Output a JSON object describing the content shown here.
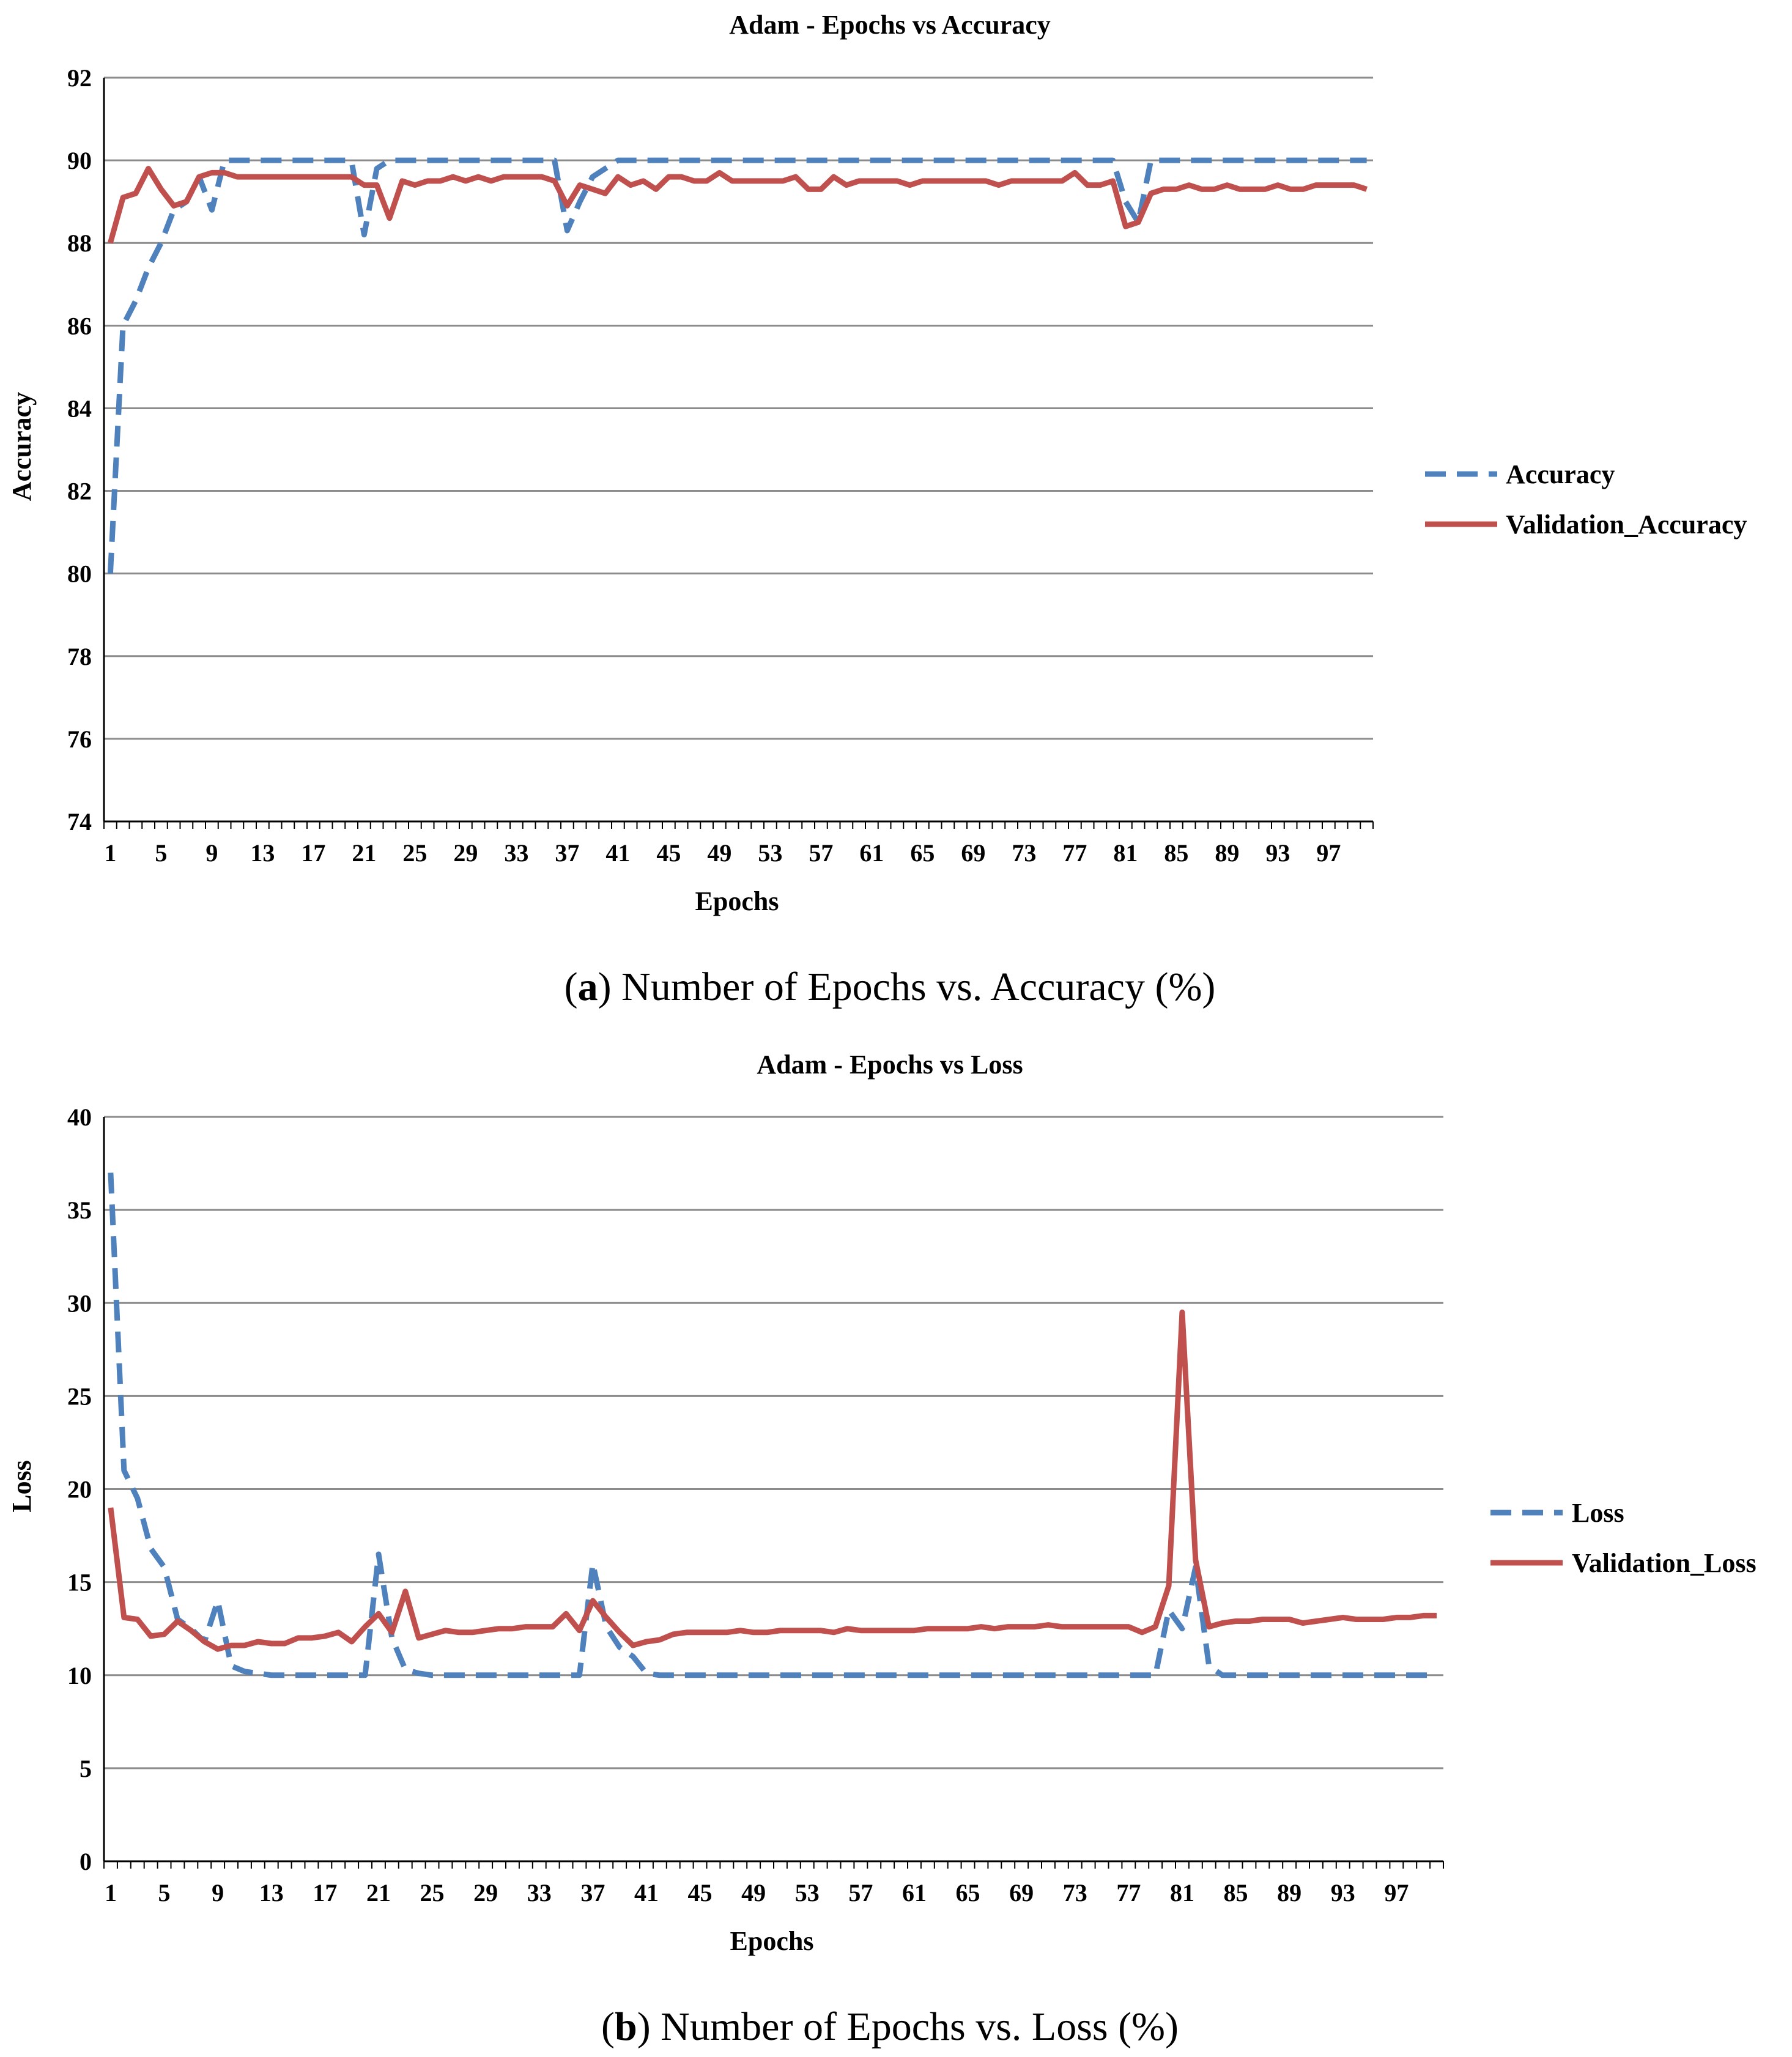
{
  "colors": {
    "train": "#4F81BD",
    "validation": "#C0504D",
    "grid": "#8C8C8C",
    "axis": "#000000"
  },
  "captions": [
    {
      "prefix": "(",
      "bold": "a",
      "rest": ") Number of Epochs vs. Accuracy (%)"
    },
    {
      "prefix": "(",
      "bold": "b",
      "rest": ") Number of Epochs vs. Loss (%)"
    }
  ],
  "chart_data": [
    {
      "type": "line",
      "title": "Adam - Epochs vs Accuracy",
      "xlabel": "Epochs",
      "ylabel": "Accuracy",
      "ylim": [
        74,
        92
      ],
      "yticks": [
        74,
        76,
        78,
        80,
        82,
        84,
        86,
        88,
        90,
        92
      ],
      "x_tick_labels": [
        1,
        5,
        9,
        13,
        17,
        21,
        25,
        29,
        33,
        37,
        41,
        45,
        49,
        53,
        57,
        61,
        65,
        69,
        73,
        77,
        81,
        85,
        89,
        93,
        97
      ],
      "grid": true,
      "legend": "right",
      "x": [
        1,
        2,
        3,
        4,
        5,
        6,
        7,
        8,
        9,
        10,
        11,
        12,
        13,
        14,
        15,
        16,
        17,
        18,
        19,
        20,
        21,
        22,
        23,
        24,
        25,
        26,
        27,
        28,
        29,
        30,
        31,
        32,
        33,
        34,
        35,
        36,
        37,
        38,
        39,
        40,
        41,
        42,
        43,
        44,
        45,
        46,
        47,
        48,
        49,
        50,
        51,
        52,
        53,
        54,
        55,
        56,
        57,
        58,
        59,
        60,
        61,
        62,
        63,
        64,
        65,
        66,
        67,
        68,
        69,
        70,
        71,
        72,
        73,
        74,
        75,
        76,
        77,
        78,
        79,
        80,
        81,
        82,
        83,
        84,
        85,
        86,
        87,
        88,
        89,
        90,
        91,
        92,
        93,
        94,
        95,
        96,
        97,
        98,
        99,
        100
      ],
      "series": [
        {
          "name": "Accuracy",
          "style": "dashed",
          "values": [
            80,
            86,
            86.6,
            87.4,
            88,
            88.8,
            89,
            89.6,
            88.8,
            90,
            90,
            90,
            90,
            90,
            90,
            90,
            90,
            90,
            90,
            90,
            88.2,
            89.8,
            90,
            90,
            90,
            90,
            90,
            90,
            90,
            90,
            90,
            90,
            90,
            90,
            90,
            90,
            88.3,
            89,
            89.6,
            89.8,
            90,
            90,
            90,
            90,
            90,
            90,
            90,
            90,
            90,
            90,
            90,
            90,
            90,
            90,
            90,
            90,
            90,
            90,
            90,
            90,
            90,
            90,
            90,
            90,
            90,
            90,
            90,
            90,
            90,
            90,
            90,
            90,
            90,
            90,
            90,
            90,
            90,
            90,
            90,
            90,
            89,
            88.5,
            90,
            90,
            90,
            90,
            90,
            90,
            90,
            90,
            90,
            90,
            90,
            90,
            90,
            90,
            90,
            90,
            90,
            90
          ]
        },
        {
          "name": "Validation_Accuracy",
          "style": "solid",
          "values": [
            88,
            89.1,
            89.2,
            89.8,
            89.3,
            88.9,
            89,
            89.6,
            89.7,
            89.7,
            89.6,
            89.6,
            89.6,
            89.6,
            89.6,
            89.6,
            89.6,
            89.6,
            89.6,
            89.6,
            89.4,
            89.4,
            88.6,
            89.5,
            89.4,
            89.5,
            89.5,
            89.6,
            89.5,
            89.6,
            89.5,
            89.6,
            89.6,
            89.6,
            89.6,
            89.5,
            88.9,
            89.4,
            89.3,
            89.2,
            89.6,
            89.4,
            89.5,
            89.3,
            89.6,
            89.6,
            89.5,
            89.5,
            89.7,
            89.5,
            89.5,
            89.5,
            89.5,
            89.5,
            89.6,
            89.3,
            89.3,
            89.6,
            89.4,
            89.5,
            89.5,
            89.5,
            89.5,
            89.4,
            89.5,
            89.5,
            89.5,
            89.5,
            89.5,
            89.5,
            89.4,
            89.5,
            89.5,
            89.5,
            89.5,
            89.5,
            89.7,
            89.4,
            89.4,
            89.5,
            88.4,
            88.5,
            89.2,
            89.3,
            89.3,
            89.4,
            89.3,
            89.3,
            89.4,
            89.3,
            89.3,
            89.3,
            89.4,
            89.3,
            89.3,
            89.4,
            89.4,
            89.4,
            89.4,
            89.3
          ]
        }
      ]
    },
    {
      "type": "line",
      "title": "Adam - Epochs vs Loss",
      "xlabel": "Epochs",
      "ylabel": "Loss",
      "ylim": [
        0,
        40
      ],
      "yticks": [
        0,
        5,
        10,
        15,
        20,
        25,
        30,
        35,
        40
      ],
      "x_tick_labels": [
        1,
        5,
        9,
        13,
        17,
        21,
        25,
        29,
        33,
        37,
        41,
        45,
        49,
        53,
        57,
        61,
        65,
        69,
        73,
        77,
        81,
        85,
        89,
        93,
        97
      ],
      "grid": true,
      "legend": "right",
      "x": [
        1,
        2,
        3,
        4,
        5,
        6,
        7,
        8,
        9,
        10,
        11,
        12,
        13,
        14,
        15,
        16,
        17,
        18,
        19,
        20,
        21,
        22,
        23,
        24,
        25,
        26,
        27,
        28,
        29,
        30,
        31,
        32,
        33,
        34,
        35,
        36,
        37,
        38,
        39,
        40,
        41,
        42,
        43,
        44,
        45,
        46,
        47,
        48,
        49,
        50,
        51,
        52,
        53,
        54,
        55,
        56,
        57,
        58,
        59,
        60,
        61,
        62,
        63,
        64,
        65,
        66,
        67,
        68,
        69,
        70,
        71,
        72,
        73,
        74,
        75,
        76,
        77,
        78,
        79,
        80,
        81,
        82,
        83,
        84,
        85,
        86,
        87,
        88,
        89,
        90,
        91,
        92,
        93,
        94,
        95,
        96,
        97,
        98,
        99,
        100
      ],
      "series": [
        {
          "name": "Loss",
          "style": "dashed",
          "values": [
            37,
            21,
            19.5,
            16.8,
            15.8,
            13,
            12.5,
            11.8,
            14,
            10.5,
            10.2,
            10.1,
            10,
            10,
            10,
            10,
            10,
            10,
            10,
            10,
            16.5,
            12,
            10.3,
            10.1,
            10,
            10,
            10,
            10,
            10,
            10,
            10,
            10,
            10,
            10,
            10,
            10,
            16,
            12.6,
            11.5,
            11,
            10.1,
            10,
            10,
            10,
            10,
            10,
            10,
            10,
            10,
            10,
            10,
            10,
            10,
            10,
            10,
            10,
            10,
            10,
            10,
            10,
            10,
            10,
            10,
            10,
            10,
            10,
            10,
            10,
            10,
            10,
            10,
            10,
            10,
            10,
            10,
            10,
            10,
            10,
            10,
            13.5,
            12.5,
            15.8,
            10.5,
            10,
            10,
            10,
            10,
            10,
            10,
            10,
            10,
            10,
            10,
            10,
            10,
            10,
            10,
            10,
            10,
            10
          ]
        },
        {
          "name": "Validation_Loss",
          "style": "solid",
          "values": [
            19,
            13.1,
            13,
            12.1,
            12.2,
            12.9,
            12.4,
            11.8,
            11.4,
            11.6,
            11.6,
            11.8,
            11.7,
            11.7,
            12,
            12,
            12.1,
            12.3,
            11.8,
            12.6,
            13.3,
            12.3,
            14.5,
            12,
            12.2,
            12.4,
            12.3,
            12.3,
            12.4,
            12.5,
            12.5,
            12.6,
            12.6,
            12.6,
            13.3,
            12.4,
            14,
            13.1,
            12.3,
            11.6,
            11.8,
            11.9,
            12.2,
            12.3,
            12.3,
            12.3,
            12.3,
            12.4,
            12.3,
            12.3,
            12.4,
            12.4,
            12.4,
            12.4,
            12.3,
            12.5,
            12.4,
            12.4,
            12.4,
            12.4,
            12.4,
            12.5,
            12.5,
            12.5,
            12.5,
            12.6,
            12.5,
            12.6,
            12.6,
            12.6,
            12.7,
            12.6,
            12.6,
            12.6,
            12.6,
            12.6,
            12.6,
            12.3,
            12.6,
            14.8,
            29.5,
            16.2,
            12.6,
            12.8,
            12.9,
            12.9,
            13,
            13,
            13,
            12.8,
            12.9,
            13,
            13.1,
            13,
            13,
            13,
            13.1,
            13.1,
            13.2,
            13.2
          ]
        }
      ]
    }
  ]
}
